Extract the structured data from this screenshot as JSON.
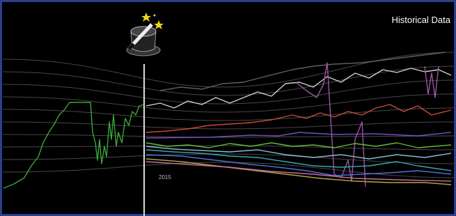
{
  "title": "Historical Data",
  "year_label": "2015"
}
